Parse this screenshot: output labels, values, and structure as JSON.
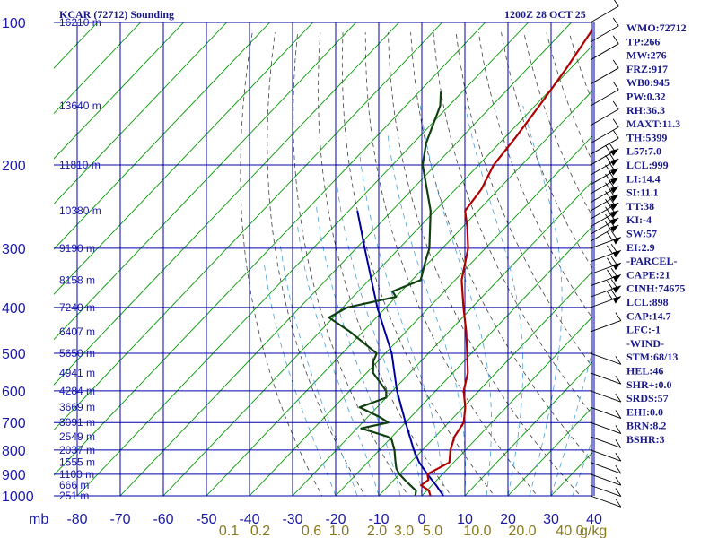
{
  "header": {
    "title": "KCAR (72712) Sounding",
    "time": "1200Z 28 OCT 25"
  },
  "chart_data": {
    "type": "skew-t",
    "pressure_axis_unit": "mb",
    "pressure_levels": [
      100,
      200,
      300,
      400,
      500,
      600,
      700,
      800,
      900,
      1000
    ],
    "temperature_ticks": [
      -80,
      -70,
      -60,
      -50,
      -40,
      -30,
      -20,
      -10,
      0,
      10,
      20,
      30,
      40
    ],
    "mixing_ratio_labels": [
      "0.1",
      "0.2",
      "0.6",
      "1.0",
      "2.0",
      "3.0",
      "5.0",
      "10.0",
      "20.0",
      "40.0"
    ],
    "mixing_ratio_unit": "g/kg",
    "height_labels": [
      {
        "p": 100,
        "label": "16210 m"
      },
      {
        "p": 150,
        "label": "13640 m"
      },
      {
        "p": 200,
        "label": "11810 m"
      },
      {
        "p": 250,
        "label": "10380 m"
      },
      {
        "p": 300,
        "label": "9190 m"
      },
      {
        "p": 350,
        "label": "8158 m"
      },
      {
        "p": 400,
        "label": "7240 m"
      },
      {
        "p": 450,
        "label": "6407 m"
      },
      {
        "p": 500,
        "label": "5650 m"
      },
      {
        "p": 550,
        "label": "4941 m"
      },
      {
        "p": 600,
        "label": "4284 m"
      },
      {
        "p": 650,
        "label": "3669 m"
      },
      {
        "p": 700,
        "label": "3091 m"
      },
      {
        "p": 750,
        "label": "2549 m"
      },
      {
        "p": 800,
        "label": "2037 m"
      },
      {
        "p": 850,
        "label": "1555 m"
      },
      {
        "p": 900,
        "label": "1100 m"
      },
      {
        "p": 950,
        "label": "666 m"
      },
      {
        "p": 1000,
        "label": "251 m"
      }
    ],
    "temperature_profile": [
      {
        "p": 1000,
        "t": 2.0
      },
      {
        "p": 975,
        "t": 0.5
      },
      {
        "p": 950,
        "t": -2.5
      },
      {
        "p": 925,
        "t": -2.0
      },
      {
        "p": 900,
        "t": -3.5
      },
      {
        "p": 850,
        "t": -1.0
      },
      {
        "p": 800,
        "t": -3.5
      },
      {
        "p": 750,
        "t": -5.5
      },
      {
        "p": 700,
        "t": -6.5
      },
      {
        "p": 650,
        "t": -9.5
      },
      {
        "p": 600,
        "t": -13.5
      },
      {
        "p": 550,
        "t": -16.5
      },
      {
        "p": 500,
        "t": -21.0
      },
      {
        "p": 450,
        "t": -26.0
      },
      {
        "p": 400,
        "t": -32.0
      },
      {
        "p": 350,
        "t": -38.5
      },
      {
        "p": 300,
        "t": -44.0
      },
      {
        "p": 270,
        "t": -49.0
      },
      {
        "p": 250,
        "t": -53.0
      },
      {
        "p": 225,
        "t": -54.0
      },
      {
        "p": 200,
        "t": -56.5
      },
      {
        "p": 175,
        "t": -57.5
      },
      {
        "p": 150,
        "t": -59.0
      },
      {
        "p": 125,
        "t": -61.0
      },
      {
        "p": 100,
        "t": -64.0
      }
    ],
    "dewpoint_profile": [
      {
        "p": 1000,
        "t": -1.5
      },
      {
        "p": 975,
        "t": -2.5
      },
      {
        "p": 950,
        "t": -5.0
      },
      {
        "p": 925,
        "t": -7.5
      },
      {
        "p": 900,
        "t": -10.0
      },
      {
        "p": 875,
        "t": -12.0
      },
      {
        "p": 850,
        "t": -13.5
      },
      {
        "p": 800,
        "t": -16.5
      },
      {
        "p": 760,
        "t": -19.5
      },
      {
        "p": 750,
        "t": -21.0
      },
      {
        "p": 720,
        "t": -29.0
      },
      {
        "p": 700,
        "t": -24.0
      },
      {
        "p": 680,
        "t": -27.5
      },
      {
        "p": 650,
        "t": -34.0
      },
      {
        "p": 620,
        "t": -30.0
      },
      {
        "p": 600,
        "t": -31.5
      },
      {
        "p": 550,
        "t": -38.5
      },
      {
        "p": 520,
        "t": -41.0
      },
      {
        "p": 500,
        "t": -42.0
      },
      {
        "p": 450,
        "t": -53.0
      },
      {
        "p": 420,
        "t": -61.0
      },
      {
        "p": 400,
        "t": -59.0
      },
      {
        "p": 380,
        "t": -50.0
      },
      {
        "p": 370,
        "t": -52.0
      },
      {
        "p": 350,
        "t": -48.0
      },
      {
        "p": 320,
        "t": -51.0
      },
      {
        "p": 300,
        "t": -53.0
      },
      {
        "p": 250,
        "t": -61.0
      },
      {
        "p": 200,
        "t": -73.0
      },
      {
        "p": 180,
        "t": -77.0
      },
      {
        "p": 150,
        "t": -82.0
      },
      {
        "p": 140,
        "t": -85.0
      }
    ],
    "parcel_path": [
      {
        "p": 1000,
        "t": 5.0
      },
      {
        "p": 950,
        "t": 1.0
      },
      {
        "p": 900,
        "t": -3.5
      },
      {
        "p": 850,
        "t": -8.0
      },
      {
        "p": 800,
        "t": -12.0
      },
      {
        "p": 700,
        "t": -20.0
      },
      {
        "p": 600,
        "t": -29.0
      },
      {
        "p": 500,
        "t": -38.5
      },
      {
        "p": 400,
        "t": -52.0
      },
      {
        "p": 300,
        "t": -68.0
      },
      {
        "p": 250,
        "t": -78.0
      }
    ],
    "colors": {
      "grid": "#0000aa",
      "skew_isotherm": "#009900",
      "dry_adiabat": "#404040",
      "moist_adiabat": "#4aa0d8",
      "temperature": "#b00000",
      "dewpoint": "#104010",
      "parcel": "#0000a0",
      "mixing_label": "#8a7a1a"
    }
  },
  "indices": [
    "WMO:72712",
    "TP:266",
    "MW:276",
    "FRZ:917",
    "WB0:945",
    "PW:0.32",
    "RH:36.3",
    "MAXT:11.3",
    "TH:5399",
    "L57:7.0",
    "LCL:999",
    "LI:14.4",
    "SI:11.1",
    "TT:38",
    "KI:-4",
    "SW:57",
    "EI:2.9",
    "-PARCEL-",
    "CAPE:21",
    "CINH:74675",
    "LCL:898",
    "CAP:14.7",
    "LFC:-1",
    "-WIND-",
    "STM:68/13",
    "HEL:46",
    "SHR+:0.0",
    "SRDS:57",
    "EHI:0.0",
    "BRN:8.2",
    "BSHR:3"
  ]
}
